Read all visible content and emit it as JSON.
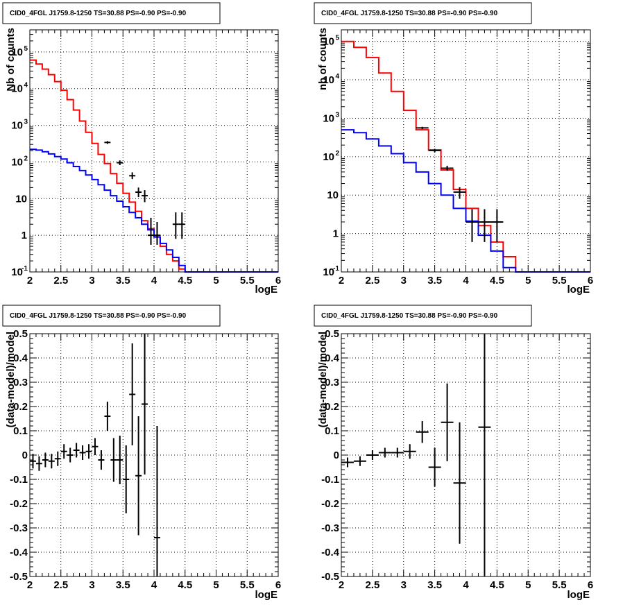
{
  "chart_data": [
    {
      "type": "line",
      "title": "CID0_4FGL J1759.8-1250 TS=30.88 PS=-0.90 PS=-0.90",
      "xlabel": "logE",
      "ylabel": "Nb of counts",
      "xlim": [
        2,
        6
      ],
      "ylim": [
        0.1,
        400000
      ],
      "log_y": true,
      "grid": true,
      "x_ticks": [
        "2",
        "2.5",
        "3",
        "3.5",
        "4",
        "4.5",
        "5",
        "5.5",
        "6"
      ],
      "y_ticks": [
        "10^-1",
        "1",
        "10",
        "10^2",
        "10^3",
        "10^4",
        "10^5"
      ],
      "bin_width": 0.1,
      "series": [
        {
          "color": "#ff0000",
          "bin_edges_start": 2.0,
          "values": [
            60000,
            47000,
            34000,
            24000,
            15500,
            9000,
            5000,
            2600,
            1300,
            640,
            320,
            160,
            90,
            48,
            26,
            14,
            8,
            4.5,
            2.5,
            1.5,
            0.9,
            0.5,
            0.3,
            0.2,
            0.12,
            0.1,
            0.1,
            0.1,
            0.1,
            0.1,
            0.1,
            0.1,
            0.1,
            0.1,
            0.1,
            0.1,
            0.1,
            0.1,
            0.1,
            0.1
          ]
        },
        {
          "color": "#0000ff",
          "bin_edges_start": 2.0,
          "values": [
            220,
            210,
            190,
            165,
            140,
            120,
            95,
            75,
            58,
            44,
            33,
            24,
            17,
            12,
            8.5,
            6,
            4.2,
            3,
            2,
            1.4,
            0.9,
            0.6,
            0.4,
            0.25,
            0.15,
            0.1,
            0.1,
            0.1,
            0.1,
            0.1,
            0.1,
            0.1,
            0.1,
            0.1,
            0.1,
            0.1,
            0.1,
            0.1,
            0.1,
            0.1
          ]
        }
      ],
      "data_points": [
        {
          "x": 3.25,
          "y": 340,
          "ylo": 310,
          "yhi": 370,
          "xerr": 0.05
        },
        {
          "x": 3.45,
          "y": 95,
          "ylo": 82,
          "yhi": 110,
          "xerr": 0.05
        },
        {
          "x": 3.65,
          "y": 42,
          "ylo": 34,
          "yhi": 52,
          "xerr": 0.05
        },
        {
          "x": 3.75,
          "y": 15,
          "ylo": 11,
          "yhi": 20,
          "xerr": 0.05
        },
        {
          "x": 3.85,
          "y": 12,
          "ylo": 8,
          "yhi": 17,
          "xerr": 0.05
        },
        {
          "x": 3.95,
          "y": 1,
          "ylo": 0.55,
          "yhi": 3,
          "xerr": 0.05
        },
        {
          "x": 4.05,
          "y": 1,
          "ylo": 0.55,
          "yhi": 2.3,
          "xerr": 0.05
        },
        {
          "x": 4.35,
          "y": 2,
          "ylo": 0.8,
          "yhi": 4.2,
          "xerr": 0.05
        },
        {
          "x": 4.45,
          "y": 2,
          "ylo": 0.8,
          "yhi": 4.2,
          "xerr": 0.05
        }
      ]
    },
    {
      "type": "line",
      "title": "CID0_4FGL J1759.8-1250 TS=30.88 PS=-0.90 PS=-0.90",
      "xlabel": "logE",
      "ylabel": "nb of counts",
      "xlim": [
        2,
        6
      ],
      "ylim": [
        0.1,
        200000
      ],
      "log_y": true,
      "grid": true,
      "x_ticks": [
        "2",
        "2.5",
        "3",
        "3.5",
        "4",
        "4.5",
        "5",
        "5.5",
        "6"
      ],
      "y_ticks": [
        "10^-1",
        "1",
        "10",
        "10^2",
        "10^3",
        "10^4",
        "10^5"
      ],
      "bin_width": 0.2,
      "series": [
        {
          "color": "#ff0000",
          "bin_edges_start": 2.0,
          "values": [
            100000,
            70000,
            38000,
            15000,
            5000,
            1600,
            500,
            150,
            45,
            14,
            4.5,
            1.6,
            0.6,
            0.25,
            0.1,
            0.1,
            0.1,
            0.1,
            0.1,
            0.1
          ]
        },
        {
          "color": "#0000ff",
          "bin_edges_start": 2.0,
          "values": [
            500,
            420,
            290,
            190,
            120,
            70,
            40,
            20,
            10,
            4.5,
            2.1,
            0.9,
            0.35,
            0.13,
            0.1,
            0.1,
            0.1,
            0.1,
            0.1,
            0.1
          ]
        }
      ],
      "data_points": [
        {
          "x": 3.3,
          "y": 560,
          "ylo": 520,
          "yhi": 600,
          "xerr": 0.1
        },
        {
          "x": 3.5,
          "y": 145,
          "ylo": 130,
          "yhi": 160,
          "xerr": 0.1
        },
        {
          "x": 3.7,
          "y": 50,
          "ylo": 43,
          "yhi": 58,
          "xerr": 0.1
        },
        {
          "x": 3.9,
          "y": 12,
          "ylo": 8,
          "yhi": 16,
          "xerr": 0.1
        },
        {
          "x": 4.1,
          "y": 2,
          "ylo": 0.6,
          "yhi": 4.3,
          "xerr": 0.1
        },
        {
          "x": 4.3,
          "y": 2,
          "ylo": 0.6,
          "yhi": 4.3,
          "xerr": 0.1
        },
        {
          "x": 4.5,
          "y": 2,
          "ylo": 0.6,
          "yhi": 4.3,
          "xerr": 0.1
        }
      ]
    },
    {
      "type": "scatter",
      "title": "CID0_4FGL J1759.8-1250 TS=30.88 PS=-0.90 PS=-0.90",
      "xlabel": "logE",
      "ylabel": "(data-model)/model",
      "xlim": [
        2,
        6
      ],
      "ylim": [
        -0.5,
        0.5
      ],
      "grid": true,
      "x_ticks": [
        "2",
        "2.5",
        "3",
        "3.5",
        "4",
        "4.5",
        "5",
        "5.5",
        "6"
      ],
      "y_ticks": [
        "-0.5",
        "-0.4",
        "-0.3",
        "-0.2",
        "-0.1",
        "0",
        "0.1",
        "0.2",
        "0.3",
        "0.4",
        "0.5"
      ],
      "points": [
        {
          "x": 2.05,
          "y": -0.025,
          "err": 0.03,
          "xerr": 0.05
        },
        {
          "x": 2.15,
          "y": -0.035,
          "err": 0.03,
          "xerr": 0.05
        },
        {
          "x": 2.25,
          "y": -0.02,
          "err": 0.03,
          "xerr": 0.05
        },
        {
          "x": 2.35,
          "y": -0.025,
          "err": 0.03,
          "xerr": 0.05
        },
        {
          "x": 2.45,
          "y": -0.015,
          "err": 0.03,
          "xerr": 0.05
        },
        {
          "x": 2.55,
          "y": 0.015,
          "err": 0.03,
          "xerr": 0.05
        },
        {
          "x": 2.65,
          "y": 0.0,
          "err": 0.03,
          "xerr": 0.05
        },
        {
          "x": 2.75,
          "y": 0.02,
          "err": 0.03,
          "xerr": 0.05
        },
        {
          "x": 2.85,
          "y": 0.01,
          "err": 0.03,
          "xerr": 0.05
        },
        {
          "x": 2.95,
          "y": 0.015,
          "err": 0.03,
          "xerr": 0.05
        },
        {
          "x": 3.05,
          "y": 0.035,
          "err": 0.035,
          "xerr": 0.05
        },
        {
          "x": 3.15,
          "y": -0.02,
          "err": 0.04,
          "xerr": 0.05
        },
        {
          "x": 3.25,
          "y": 0.16,
          "err": 0.06,
          "xerr": 0.05
        },
        {
          "x": 3.35,
          "y": -0.02,
          "err": 0.09,
          "xerr": 0.05
        },
        {
          "x": 3.45,
          "y": -0.02,
          "err": 0.1,
          "xerr": 0.05
        },
        {
          "x": 3.55,
          "y": -0.1,
          "err": 0.14,
          "xerr": 0.05
        },
        {
          "x": 3.65,
          "y": 0.25,
          "err": 0.21,
          "xerr": 0.05
        },
        {
          "x": 3.75,
          "y": -0.085,
          "err": 0.245,
          "xerr": 0.05
        },
        {
          "x": 3.85,
          "y": 0.21,
          "err": 0.29,
          "xerr": 0.05
        },
        {
          "x": 4.05,
          "y": -0.34,
          "err": 0.46,
          "xerr": 0.05
        }
      ]
    },
    {
      "type": "scatter",
      "title": "CID0_4FGL J1759.8-1250 TS=30.88 PS=-0.90 PS=-0.90",
      "xlabel": "logE",
      "ylabel": "(data-model)/model",
      "xlim": [
        2,
        6
      ],
      "ylim": [
        -0.5,
        0.5
      ],
      "grid": true,
      "x_ticks": [
        "2",
        "2.5",
        "3",
        "3.5",
        "4",
        "4.5",
        "5",
        "5.5",
        "6"
      ],
      "y_ticks": [
        "-0.5",
        "-0.4",
        "-0.3",
        "-0.2",
        "-0.1",
        "0",
        "0.1",
        "0.2",
        "0.3",
        "0.4",
        "0.5"
      ],
      "points": [
        {
          "x": 2.1,
          "y": -0.03,
          "err": 0.02,
          "xerr": 0.1
        },
        {
          "x": 2.3,
          "y": -0.025,
          "err": 0.02,
          "xerr": 0.1
        },
        {
          "x": 2.5,
          "y": 0.0,
          "err": 0.02,
          "xerr": 0.1
        },
        {
          "x": 2.7,
          "y": 0.01,
          "err": 0.02,
          "xerr": 0.1
        },
        {
          "x": 2.9,
          "y": 0.01,
          "err": 0.02,
          "xerr": 0.1
        },
        {
          "x": 3.1,
          "y": 0.015,
          "err": 0.03,
          "xerr": 0.1
        },
        {
          "x": 3.3,
          "y": 0.095,
          "err": 0.045,
          "xerr": 0.1
        },
        {
          "x": 3.5,
          "y": -0.05,
          "err": 0.08,
          "xerr": 0.1
        },
        {
          "x": 3.7,
          "y": 0.135,
          "err": 0.16,
          "xerr": 0.1
        },
        {
          "x": 3.9,
          "y": -0.115,
          "err": 0.25,
          "xerr": 0.1
        },
        {
          "x": 4.3,
          "y": 0.115,
          "err": 0.62,
          "xerr": 0.1
        }
      ]
    }
  ]
}
